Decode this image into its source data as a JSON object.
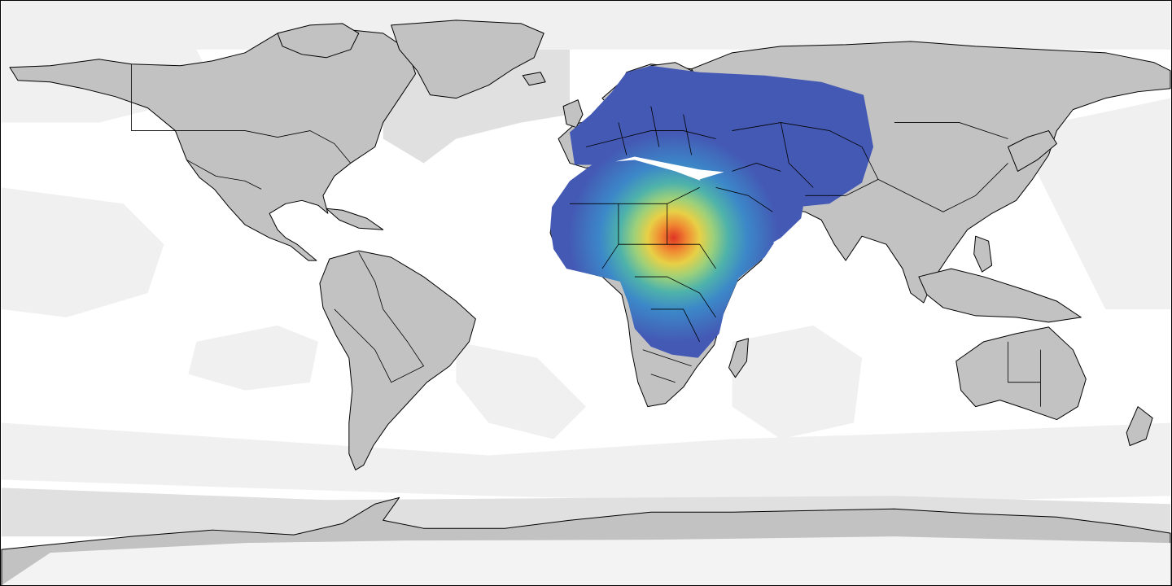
{
  "map": {
    "projection": "equirectangular",
    "lon_range": [
      -180,
      180
    ],
    "lat_range": [
      -90,
      90
    ],
    "colors": {
      "land": "#c2c2c2",
      "ocean": "#ffffff",
      "ocean_shade_light": "#f0f0f0",
      "ocean_shade_mid": "#e0e0e0",
      "ice": "#f3f3f3",
      "border": "#000000"
    },
    "heatmap": {
      "colorscale": [
        "#4459b4",
        "#3c88c8",
        "#4fb3aa",
        "#9cd07a",
        "#e8d046",
        "#f08a32",
        "#e03424"
      ],
      "peak": {
        "lon": 27,
        "lat": 17
      },
      "extent_lon": [
        -16,
        60
      ],
      "extent_lat": [
        -32,
        58
      ]
    }
  }
}
